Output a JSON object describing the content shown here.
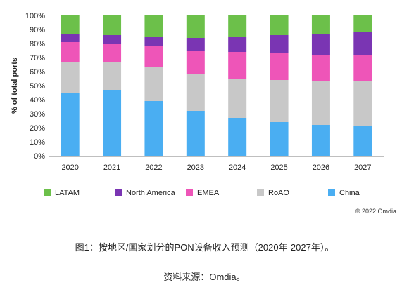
{
  "chart_data": {
    "type": "bar",
    "stacked": true,
    "percent": true,
    "categories": [
      "2020",
      "2021",
      "2022",
      "2023",
      "2024",
      "2025",
      "2026",
      "2027"
    ],
    "ylabel": "% of total ports",
    "ylim": [
      0,
      100
    ],
    "yticks": [
      "0%",
      "10%",
      "20%",
      "30%",
      "40%",
      "50%",
      "60%",
      "70%",
      "80%",
      "90%",
      "100%"
    ],
    "grid": false,
    "legend_position": "bottom",
    "series": [
      {
        "name": "China",
        "color": "#4aaef2",
        "values": [
          45,
          47,
          39,
          32,
          27,
          24,
          22,
          21
        ]
      },
      {
        "name": "RoAO",
        "color": "#c8c8c8",
        "values": [
          22,
          20,
          24,
          26,
          28,
          30,
          31,
          32
        ]
      },
      {
        "name": "EMEA",
        "color": "#ee55b8",
        "values": [
          14,
          13,
          15,
          17,
          19,
          19,
          19,
          19
        ]
      },
      {
        "name": "North America",
        "color": "#7a35b3",
        "values": [
          6,
          6,
          7,
          9,
          11,
          13,
          15,
          16
        ]
      },
      {
        "name": "LATAM",
        "color": "#6cc04a",
        "values": [
          13,
          14,
          15,
          16,
          15,
          14,
          13,
          12
        ]
      }
    ],
    "legend_order": [
      "LATAM",
      "North America",
      "EMEA",
      "RoAO",
      "China"
    ]
  },
  "credit": "© 2022 Omdia",
  "caption": "图1：按地区/国家划分的PON设备收入预测（2020年-2027年）。",
  "source": "资料来源：Omdia。"
}
